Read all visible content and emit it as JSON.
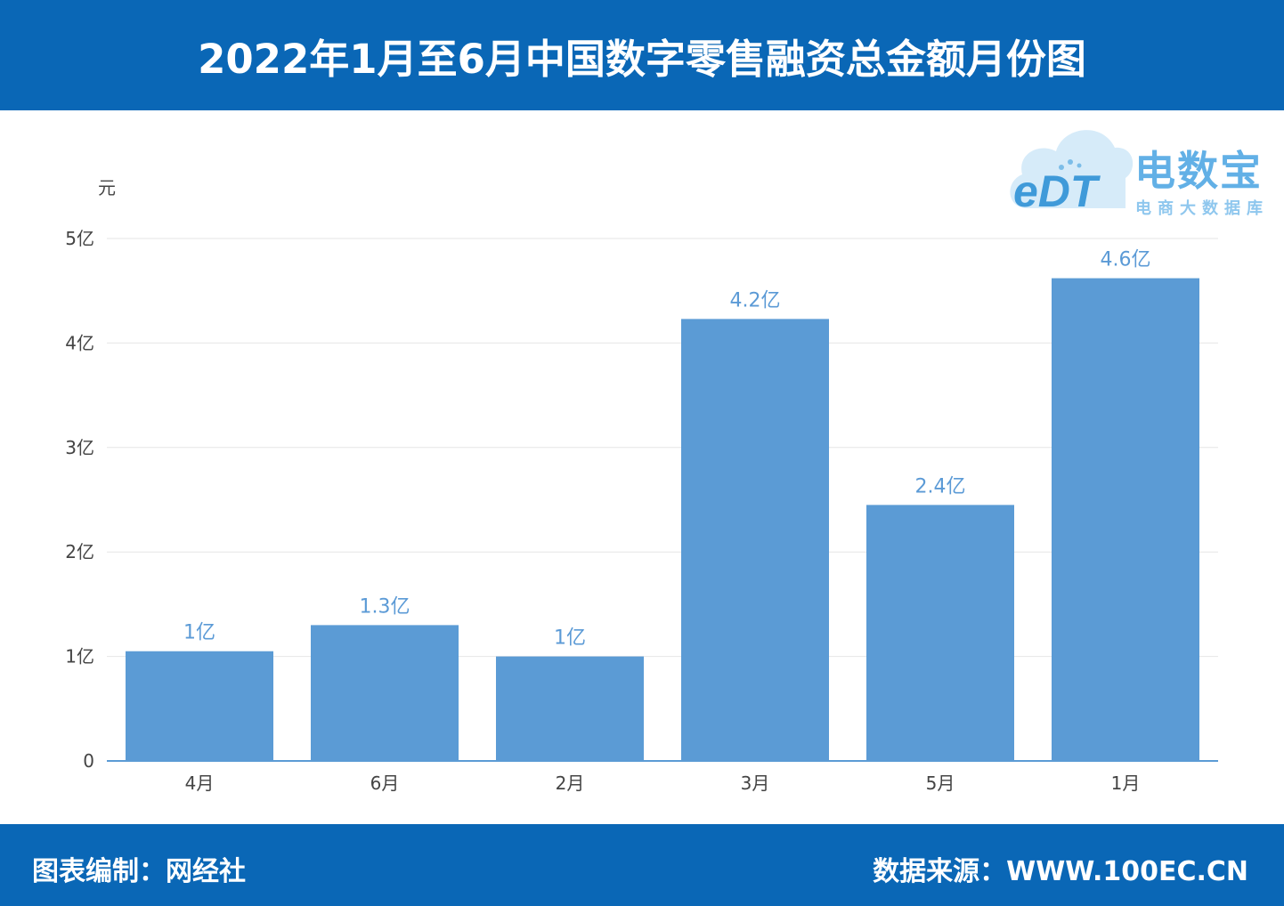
{
  "header": {
    "title": "2022年1月至6月中国数字零售融资总金额月份图"
  },
  "footer": {
    "left": "图表编制：网经社",
    "right": "数据来源：WWW.100EC.CN"
  },
  "logo": {
    "letters": "eDT",
    "name_cn": "电数宝",
    "subtitle_cn": "电商大数据库"
  },
  "colors": {
    "header_bg": "#0a67b6",
    "bar": "#5b9bd5",
    "data_label": "#5b9ad6"
  },
  "chart_data": {
    "type": "bar",
    "ylabel": "元",
    "categories": [
      "4月",
      "6月",
      "2月",
      "3月",
      "5月",
      "1月"
    ],
    "values": [
      1.05,
      1.3,
      1.0,
      4.23,
      2.45,
      4.62
    ],
    "data_labels": [
      "1亿",
      "1.3亿",
      "1亿",
      "4.2亿",
      "2.4亿",
      "4.6亿"
    ],
    "yticks": [
      "0",
      "1亿",
      "2亿",
      "3亿",
      "4亿",
      "5亿"
    ],
    "ylim": [
      0,
      5
    ],
    "grid": true
  }
}
